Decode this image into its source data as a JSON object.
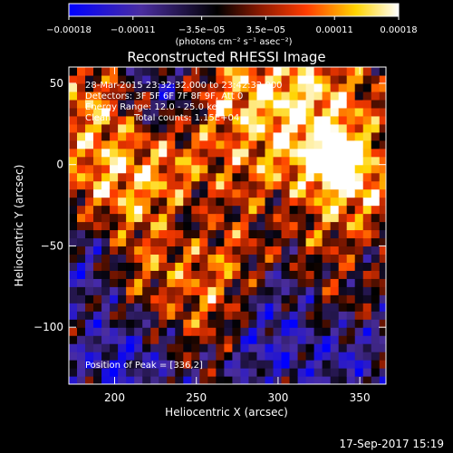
{
  "chart_data": {
    "type": "heatmap",
    "title": "Reconstructed RHESSI Image",
    "xlabel": "Heliocentric X (arcsec)",
    "ylabel": "Heliocentric Y (arcsec)",
    "xlim": [
      172,
      366
    ],
    "ylim": [
      -135,
      60
    ],
    "x_ticks": [
      "200",
      "250",
      "300",
      "350"
    ],
    "x_tick_values": [
      200,
      250,
      300,
      350
    ],
    "y_ticks": [
      "50",
      "0",
      "−50",
      "−100"
    ],
    "y_tick_values": [
      50,
      0,
      -50,
      -100
    ],
    "colorbar": {
      "range": [
        -0.00018,
        0.00018
      ],
      "tick_labels": [
        "−0.00018",
        "−0.00011",
        "−3.5e−05",
        "3.5e−05",
        "0.00011",
        "0.00018"
      ],
      "tick_values": [
        -0.00018,
        -0.00011,
        -3.5e-05,
        3.5e-05,
        0.00011,
        0.00018
      ],
      "units_label": "(photons cm⁻² s⁻¹ asec⁻²)",
      "colors": [
        "#0000ff",
        "#4b2ea0",
        "#000000",
        "#8b1a00",
        "#ff4500",
        "#ffd400",
        "#ffffff"
      ]
    },
    "annotations": {
      "time_range": "28-Mar-2015 23:32:32.000 to 23:42:32.000",
      "detectors": "Detectors: 3F 5F 6F 7F 8F 9F, Att 0",
      "energy_range": "Energy Range: 12.0 - 25.0 keV",
      "method": "Clean",
      "total_counts": "Total counts: 1.15E+04",
      "peak": "Position of Peak = [336,2]"
    },
    "peak_position": [
      336,
      2
    ],
    "grid": false
  },
  "footer": {
    "timestamp": "17-Sep-2017 15:19"
  },
  "colors": {
    "background": "#000000",
    "foreground": "#ffffff"
  }
}
